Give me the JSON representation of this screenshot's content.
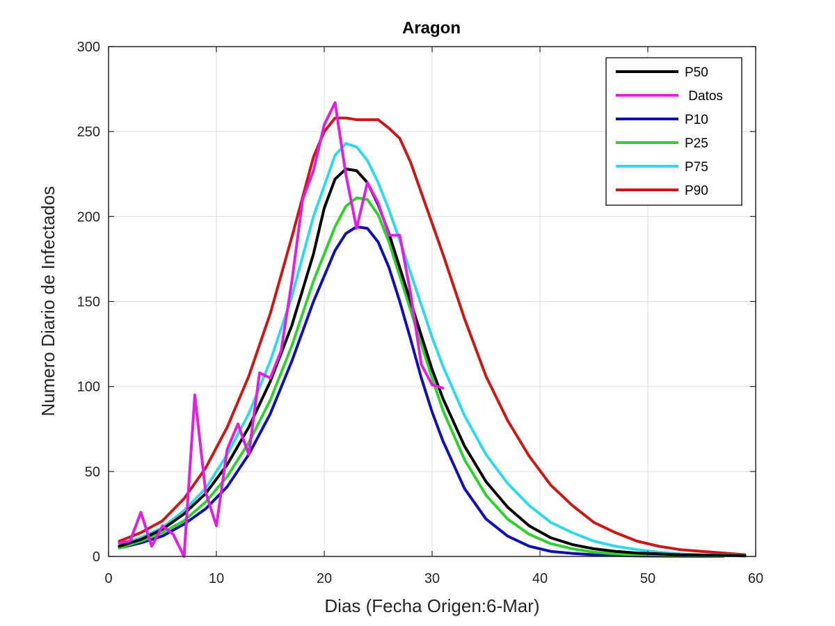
{
  "chart_data": {
    "type": "line",
    "title": "Aragon",
    "xlabel": "Dias (Fecha Origen:6-Mar)",
    "ylabel": "Numero Diario de Infectados",
    "xlim": [
      0,
      60
    ],
    "ylim": [
      0,
      300
    ],
    "x_ticks": [
      0,
      10,
      20,
      30,
      40,
      50,
      60
    ],
    "y_ticks": [
      0,
      50,
      100,
      150,
      200,
      250,
      300
    ],
    "grid": true,
    "legend_position": "top-right",
    "series": [
      {
        "name": "P50",
        "color": "#000000",
        "x": [
          1,
          3,
          5,
          7,
          9,
          11,
          13,
          15,
          17,
          19,
          20,
          21,
          22,
          23,
          24,
          25,
          26,
          27,
          28,
          29,
          30,
          31,
          33,
          35,
          37,
          39,
          41,
          43,
          45,
          47,
          49,
          51,
          53,
          55,
          57,
          59
        ],
        "y": [
          6,
          10,
          16,
          25,
          37,
          54,
          76,
          103,
          136,
          178,
          205,
          222,
          228,
          227,
          220,
          207,
          190,
          170,
          150,
          130,
          110,
          93,
          65,
          44,
          29,
          18,
          11,
          7,
          4.5,
          3,
          2,
          1.5,
          1,
          0.8,
          0.5,
          0.3
        ]
      },
      {
        "name": " Datos",
        "color": "#e020e0",
        "x": [
          1,
          2,
          3,
          4,
          5,
          6,
          7,
          8,
          9,
          10,
          11,
          12,
          13,
          14,
          15,
          16,
          17,
          18,
          19,
          20,
          21,
          22,
          23,
          24,
          25,
          26,
          27,
          28,
          29,
          30,
          31
        ],
        "y": [
          8,
          9,
          26,
          6,
          18,
          13,
          0,
          95,
          38,
          18,
          63,
          78,
          60,
          108,
          105,
          121,
          162,
          210,
          227,
          254,
          267,
          225,
          193,
          220,
          208,
          189,
          189,
          155,
          113,
          101,
          99
        ]
      },
      {
        "name": "P10",
        "color": "#1010b0",
        "x": [
          1,
          3,
          5,
          7,
          9,
          11,
          13,
          15,
          17,
          19,
          21,
          22,
          23,
          24,
          25,
          26,
          27,
          28,
          29,
          30,
          31,
          33,
          35,
          37,
          39,
          41,
          43,
          45,
          47,
          49,
          51,
          53,
          55,
          57
        ],
        "y": [
          5,
          8,
          12,
          19,
          28,
          41,
          60,
          84,
          115,
          150,
          180,
          190,
          194,
          193,
          185,
          170,
          150,
          128,
          105,
          85,
          68,
          40,
          22,
          12,
          6,
          3,
          1.8,
          1,
          0.6,
          0.3,
          0.2,
          0.1,
          0,
          0
        ]
      },
      {
        "name": "P25",
        "color": "#30d030",
        "x": [
          1,
          3,
          5,
          7,
          9,
          11,
          13,
          15,
          17,
          19,
          21,
          22,
          23,
          24,
          25,
          26,
          27,
          28,
          29,
          30,
          31,
          33,
          35,
          37,
          39,
          41,
          43,
          45,
          47,
          49,
          51,
          53,
          55,
          57
        ],
        "y": [
          5,
          9,
          14,
          21,
          32,
          47,
          67,
          92,
          124,
          162,
          194,
          206,
          211,
          210,
          201,
          185,
          165,
          145,
          125,
          105,
          86,
          57,
          36,
          22,
          13,
          7.5,
          4.5,
          2.5,
          1.5,
          1,
          0.5,
          0.3,
          0.2,
          0.1
        ]
      },
      {
        "name": "P75",
        "color": "#30d8e8",
        "x": [
          1,
          3,
          5,
          7,
          9,
          11,
          13,
          15,
          17,
          19,
          21,
          22,
          23,
          24,
          25,
          26,
          27,
          28,
          29,
          30,
          31,
          33,
          35,
          37,
          39,
          41,
          43,
          45,
          47,
          49,
          51,
          53,
          55,
          57,
          59
        ],
        "y": [
          7,
          11,
          17,
          27,
          40,
          60,
          84,
          115,
          153,
          200,
          236,
          243,
          241,
          233,
          220,
          204,
          186,
          167,
          148,
          129,
          112,
          83,
          60,
          43,
          30,
          20,
          14,
          9,
          6,
          4,
          2.5,
          1.5,
          1,
          0.7,
          0.4
        ]
      },
      {
        "name": "P90",
        "color": "#c81818",
        "x": [
          1,
          3,
          5,
          7,
          9,
          11,
          13,
          15,
          17,
          19,
          20,
          21,
          22,
          23,
          24,
          25,
          26,
          27,
          28,
          29,
          30,
          31,
          33,
          35,
          37,
          39,
          41,
          43,
          45,
          47,
          49,
          51,
          53,
          55,
          57,
          59
        ],
        "y": [
          9,
          14,
          21,
          34,
          52,
          76,
          106,
          143,
          188,
          235,
          250,
          258,
          258,
          257,
          257,
          257,
          252,
          246,
          232,
          214,
          196,
          178,
          140,
          106,
          80,
          59,
          42,
          30,
          20,
          14,
          9,
          6,
          4,
          3,
          2,
          1
        ]
      }
    ]
  }
}
